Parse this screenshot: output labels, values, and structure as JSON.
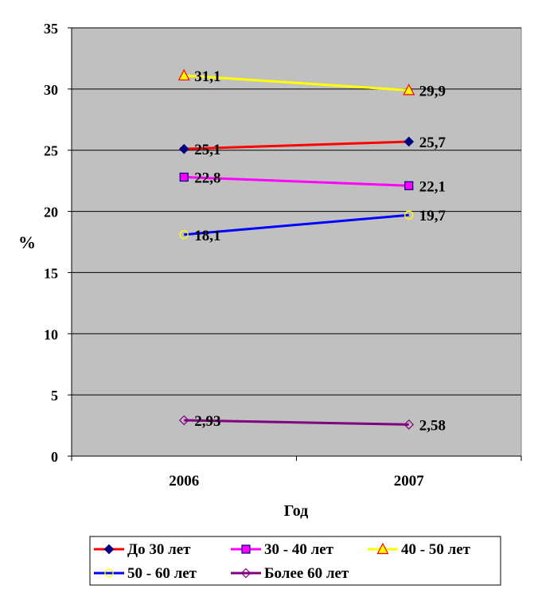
{
  "chart_data": {
    "type": "line",
    "title": "",
    "xlabel": "Год",
    "ylabel": "%",
    "categories": [
      "2006",
      "2007"
    ],
    "ylim": [
      0,
      35
    ],
    "y_ticks": [
      "0",
      "5",
      "10",
      "15",
      "20",
      "25",
      "30",
      "35"
    ],
    "grid": true,
    "legend_position": "bottom",
    "plot_background": "#c0c0c0",
    "series": [
      {
        "name": "До 30 лет",
        "values": [
          25.1,
          25.7
        ],
        "labels": [
          "25,1",
          "25,7"
        ],
        "color": "#ff0000",
        "marker": "diamond",
        "marker_fill": "#000080",
        "marker_stroke": "#000080"
      },
      {
        "name": "30 - 40 лет",
        "values": [
          22.8,
          22.1
        ],
        "labels": [
          "22,8",
          "22,1"
        ],
        "color": "#ff00ff",
        "marker": "square",
        "marker_fill": "#ff00ff",
        "marker_stroke": "#000080"
      },
      {
        "name": "40 - 50 лет",
        "values": [
          31.1,
          29.9
        ],
        "labels": [
          "31,1",
          "29,9"
        ],
        "color": "#ffff00",
        "marker": "triangle",
        "marker_fill": "#ffff00",
        "marker_stroke": "#ff0000"
      },
      {
        "name": "50 - 60 лет",
        "values": [
          18.1,
          19.7
        ],
        "labels": [
          "18,1",
          "19,7"
        ],
        "color": "#0000ff",
        "marker": "circle",
        "marker_fill": "none",
        "marker_stroke": "#ffff00"
      },
      {
        "name": "Более 60 лет",
        "values": [
          2.93,
          2.58
        ],
        "labels": [
          "2,93",
          "2,58"
        ],
        "color": "#800080",
        "marker": "diamond",
        "marker_fill": "none",
        "marker_stroke": "#800080"
      }
    ]
  }
}
